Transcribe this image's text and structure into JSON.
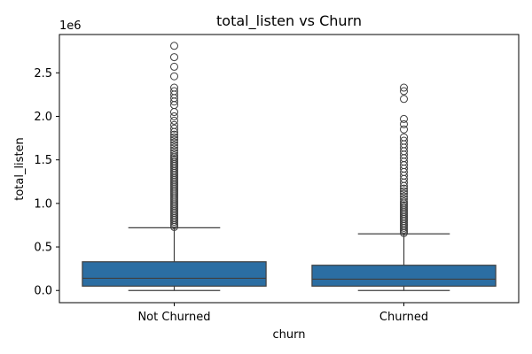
{
  "chart_data": {
    "type": "box",
    "title": "total_listen vs Churn",
    "xlabel": "churn",
    "ylabel": "total_listen",
    "y_offset_label": "1e6",
    "ylim": [
      -0.14,
      2.94
    ],
    "yticks": [
      0.0,
      0.5,
      1.0,
      1.5,
      2.0,
      2.5
    ],
    "ytick_labels": [
      "0.0",
      "0.5",
      "1.0",
      "1.5",
      "2.0",
      "2.5"
    ],
    "categories": [
      "Not Churned",
      "Churned"
    ],
    "box_color": "#2b6ea3",
    "line_color": "#3f3f3f",
    "boxes": [
      {
        "category": "Not Churned",
        "whisker_low": 0.0,
        "q1": 0.05,
        "median": 0.14,
        "q3": 0.33,
        "whisker_high": 0.72,
        "outliers": [
          0.73,
          0.75,
          0.77,
          0.79,
          0.81,
          0.83,
          0.85,
          0.87,
          0.89,
          0.91,
          0.93,
          0.95,
          0.97,
          0.99,
          1.01,
          1.03,
          1.05,
          1.07,
          1.09,
          1.11,
          1.13,
          1.15,
          1.17,
          1.19,
          1.21,
          1.23,
          1.25,
          1.27,
          1.29,
          1.31,
          1.33,
          1.35,
          1.37,
          1.39,
          1.41,
          1.43,
          1.45,
          1.47,
          1.49,
          1.51,
          1.53,
          1.55,
          1.58,
          1.61,
          1.64,
          1.67,
          1.7,
          1.73,
          1.76,
          1.79,
          1.82,
          1.86,
          1.9,
          1.95,
          2.0,
          2.05,
          2.13,
          2.17,
          2.21,
          2.25,
          2.29,
          2.33,
          2.46,
          2.57,
          2.68,
          2.81
        ]
      },
      {
        "category": "Churned",
        "whisker_low": 0.0,
        "q1": 0.05,
        "median": 0.13,
        "q3": 0.29,
        "whisker_high": 0.65,
        "outliers": [
          0.66,
          0.68,
          0.7,
          0.72,
          0.74,
          0.76,
          0.78,
          0.8,
          0.82,
          0.84,
          0.86,
          0.88,
          0.9,
          0.92,
          0.94,
          0.96,
          0.98,
          1.0,
          1.02,
          1.05,
          1.08,
          1.11,
          1.14,
          1.17,
          1.2,
          1.24,
          1.28,
          1.32,
          1.36,
          1.4,
          1.44,
          1.48,
          1.52,
          1.56,
          1.6,
          1.64,
          1.68,
          1.72,
          1.76,
          1.85,
          1.91,
          1.97,
          2.2,
          2.29,
          2.33
        ]
      }
    ],
    "grid": false,
    "legend": "none"
  }
}
